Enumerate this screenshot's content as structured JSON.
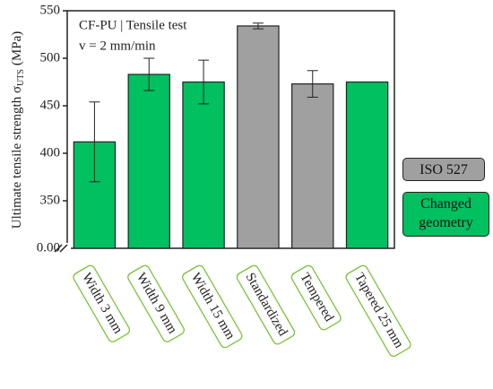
{
  "chart_data": {
    "type": "bar",
    "annotations": [
      "CF-PU | Tensile test",
      "v = 2 mm/min"
    ],
    "y_label": {
      "text": "Ultimate tensile strength σ",
      "subscript": "UTS",
      "unit": "(MPa)"
    },
    "categories": [
      "Width 3 mm",
      "Width 9 mm",
      "Width 15 mm",
      "Standardized",
      "Tempered",
      "Tapered 25 mm"
    ],
    "values": [
      412,
      483,
      475,
      534,
      473,
      475
    ],
    "errors": [
      42,
      17,
      23,
      3,
      14,
      null
    ],
    "colors": [
      "#00c060",
      "#00c060",
      "#00c060",
      "#a0a0a0",
      "#a0a0a0",
      "#00c060"
    ],
    "legend": [
      {
        "name": "ISO 527",
        "color": "#a0a0a0"
      },
      {
        "name": "Changed geometry",
        "color": "#00c060"
      }
    ],
    "label_box_color": "#7dc23a",
    "ylim": [
      0,
      550
    ],
    "axis_break": [
      0,
      300
    ],
    "yticks": [
      {
        "value": 0,
        "label": "0.00"
      },
      350,
      400,
      450,
      500,
      550
    ]
  }
}
